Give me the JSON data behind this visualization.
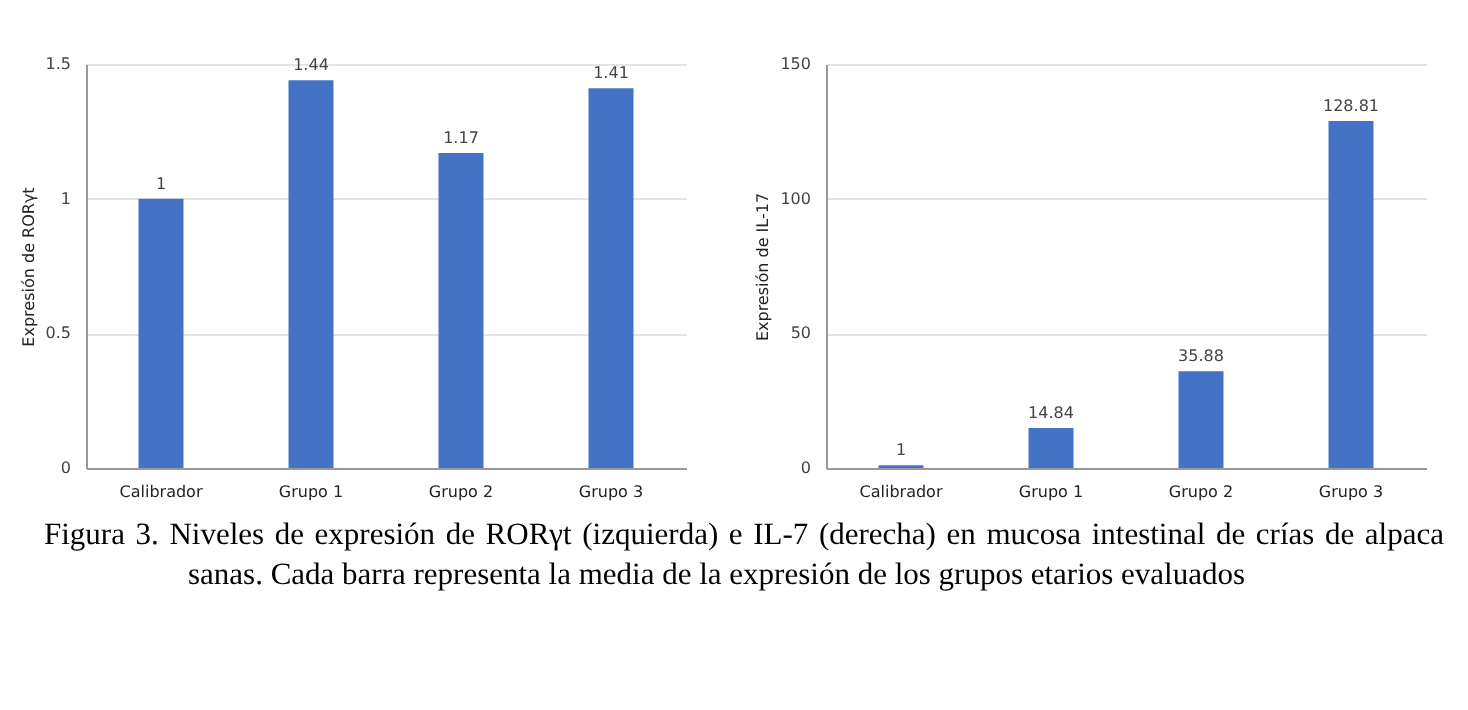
{
  "chart_data": [
    {
      "type": "bar",
      "ylabel": "Expresión de RORγt",
      "categories": [
        "Calibrador",
        "Grupo 1",
        "Grupo 2",
        "Grupo 3"
      ],
      "values": [
        1,
        1.44,
        1.17,
        1.41
      ],
      "color": "#4472c4",
      "ylim": [
        0,
        1.5
      ],
      "yticks": [
        0,
        0.5,
        1,
        1.5
      ],
      "grid": "y",
      "data_labels": true,
      "annotations": [
        "Figura 3.  Niveles de expresión de RORγt (izquierda) e IL-7 (derecha) en mucosa intestinal de crías de alpaca sanas. Cada barra representa la media de la expresión de los grupos etarios evaluados"
      ]
    },
    {
      "type": "bar",
      "ylabel": "Expresión de IL-17",
      "categories": [
        "Calibrador",
        "Grupo 1",
        "Grupo 2",
        "Grupo 3"
      ],
      "values": [
        1,
        14.84,
        35.88,
        128.81
      ],
      "color": "#4472c4",
      "ylim": [
        0,
        150
      ],
      "yticks": [
        0,
        50,
        100,
        150
      ],
      "grid": "y",
      "data_labels": true
    }
  ]
}
